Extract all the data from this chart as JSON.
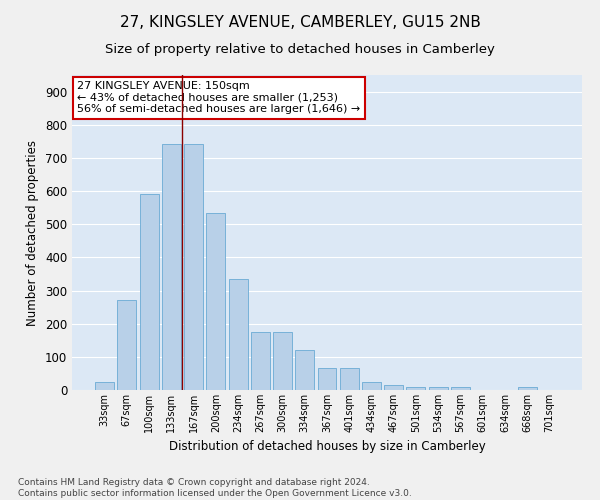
{
  "title": "27, KINGSLEY AVENUE, CAMBERLEY, GU15 2NB",
  "subtitle": "Size of property relative to detached houses in Camberley",
  "xlabel": "Distribution of detached houses by size in Camberley",
  "ylabel": "Number of detached properties",
  "categories": [
    "33sqm",
    "67sqm",
    "100sqm",
    "133sqm",
    "167sqm",
    "200sqm",
    "234sqm",
    "267sqm",
    "300sqm",
    "334sqm",
    "367sqm",
    "401sqm",
    "434sqm",
    "467sqm",
    "501sqm",
    "534sqm",
    "567sqm",
    "601sqm",
    "634sqm",
    "668sqm",
    "701sqm"
  ],
  "values": [
    25,
    272,
    590,
    743,
    743,
    535,
    335,
    175,
    175,
    120,
    67,
    67,
    25,
    15,
    10,
    10,
    10,
    0,
    0,
    10,
    0
  ],
  "bar_color": "#b8d0e8",
  "bar_edge_color": "#6aaad4",
  "vline_color": "#8b0000",
  "annotation_text": "27 KINGSLEY AVENUE: 150sqm\n← 43% of detached houses are smaller (1,253)\n56% of semi-detached houses are larger (1,646) →",
  "annotation_box_color": "#ffffff",
  "annotation_box_edge_color": "#cc0000",
  "ylim": [
    0,
    950
  ],
  "yticks": [
    0,
    100,
    200,
    300,
    400,
    500,
    600,
    700,
    800,
    900
  ],
  "background_color": "#dce8f5",
  "fig_background_color": "#f0f0f0",
  "grid_color": "#ffffff",
  "footer": "Contains HM Land Registry data © Crown copyright and database right 2024.\nContains public sector information licensed under the Open Government Licence v3.0.",
  "title_fontsize": 11,
  "subtitle_fontsize": 9.5,
  "annotation_fontsize": 8,
  "footer_fontsize": 6.5
}
